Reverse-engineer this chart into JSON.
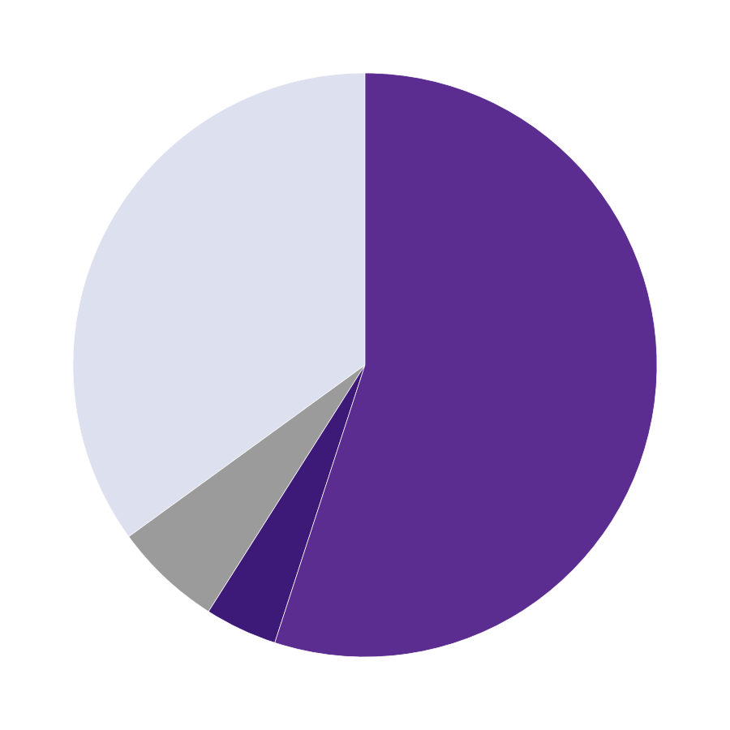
{
  "slices": [
    35.0,
    6.0,
    4.0,
    55.0
  ],
  "colors": [
    "#dde0ee",
    "#9b9b9b",
    "#3d1a78",
    "#5c2d91"
  ],
  "startangle": 90,
  "counterclock": true,
  "figsize": [
    9.0,
    9.0
  ],
  "dpi": 100
}
